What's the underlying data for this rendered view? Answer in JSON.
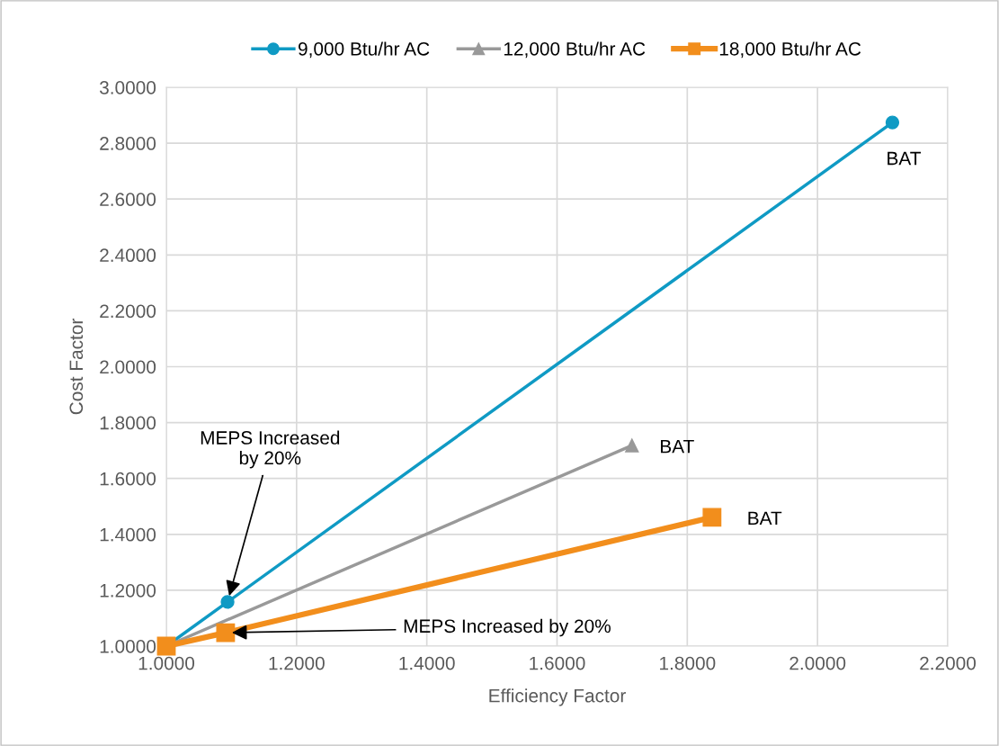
{
  "chart_data": {
    "type": "line",
    "xlabel": "Efficiency Factor",
    "ylabel": "Cost Factor",
    "series": [
      {
        "name": "9,000 Btu/hr AC",
        "color": "#0f9ac4",
        "marker": "circle",
        "x": [
          1.0,
          1.094,
          2.115
        ],
        "values": [
          1.0,
          1.158,
          2.874
        ]
      },
      {
        "name": "12,000 Btu/hr AC",
        "color": "#999999",
        "marker": "triangle",
        "x": [
          1.0,
          1.715
        ],
        "values": [
          1.0,
          1.718
        ]
      },
      {
        "name": "18,000 Btu/hr AC",
        "color": "#f28e1c",
        "marker": "square",
        "x": [
          1.0,
          1.091,
          1.838
        ],
        "values": [
          1.0,
          1.048,
          1.461
        ]
      }
    ],
    "xlim": [
      1.0,
      2.2
    ],
    "xticks": [
      {
        "value": 1.0,
        "label": "1.0000"
      },
      {
        "value": 1.2,
        "label": "1.2000"
      },
      {
        "value": 1.4,
        "label": "1.4000"
      },
      {
        "value": 1.6,
        "label": "1.6000"
      },
      {
        "value": 1.8,
        "label": "1.8000"
      },
      {
        "value": 2.0,
        "label": "2.0000"
      },
      {
        "value": 2.2,
        "label": "2.2000"
      }
    ],
    "ylim": [
      1.0,
      3.0
    ],
    "yticks": [
      {
        "value": 1.0,
        "label": "1.0000"
      },
      {
        "value": 1.2,
        "label": "1.2000"
      },
      {
        "value": 1.4,
        "label": "1.4000"
      },
      {
        "value": 1.6,
        "label": "1.6000"
      },
      {
        "value": 1.8,
        "label": "1.8000"
      },
      {
        "value": 2.0,
        "label": "2.0000"
      },
      {
        "value": 2.2,
        "label": "2.2000"
      },
      {
        "value": 2.4,
        "label": "2.4000"
      },
      {
        "value": 2.6,
        "label": "2.6000"
      },
      {
        "value": 2.8,
        "label": "2.8000"
      },
      {
        "value": 3.0,
        "label": "3.0000"
      }
    ],
    "grid": true,
    "legend": "top",
    "line_style": "solid",
    "annotations": [
      {
        "text": "BAT",
        "x": 2.115,
        "y": 2.874
      },
      {
        "text": "BAT",
        "x": 1.715,
        "y": 1.718
      },
      {
        "text": "BAT",
        "x": 1.838,
        "y": 1.461
      },
      {
        "text": "MEPS Increased\nby 20%",
        "x": 1.094,
        "y": 1.158
      },
      {
        "text": "MEPS Increased by 20%",
        "x": 1.091,
        "y": 1.048
      }
    ]
  }
}
